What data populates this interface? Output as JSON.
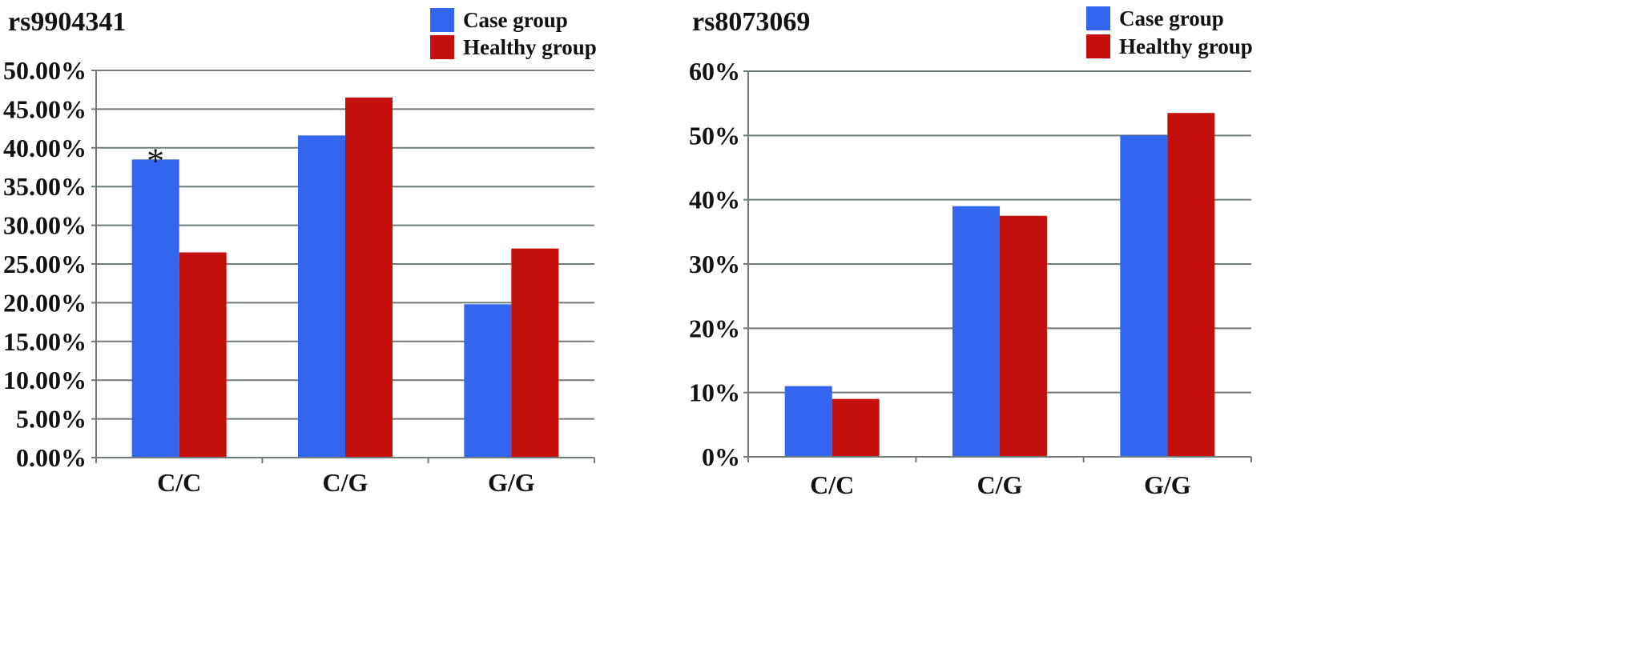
{
  "chart_data": [
    {
      "type": "bar",
      "title": "rs9904341",
      "categories": [
        "C/C",
        "C/G",
        "G/G"
      ],
      "series": [
        {
          "name": "Case group",
          "color": "#3366ee",
          "values": [
            38.5,
            41.6,
            19.8
          ]
        },
        {
          "name": "Healthy group",
          "color": "#c40f0a",
          "values": [
            26.5,
            46.5,
            27.0
          ]
        }
      ],
      "ylim": [
        0,
        50
      ],
      "yticks": [
        0,
        5,
        10,
        15,
        20,
        25,
        30,
        35,
        40,
        45,
        50
      ],
      "ytick_labels": [
        "0.00%",
        "5.00%",
        "10.00%",
        "15.00%",
        "20.00%",
        "25.00%",
        "30.00%",
        "35.00%",
        "40.00%",
        "45.00%",
        "50.00%"
      ],
      "annotations": [
        {
          "text": "*",
          "category": "C/C",
          "series": "Case group"
        }
      ],
      "legend_position": "top-right",
      "grid": true,
      "xlabel": "",
      "ylabel": ""
    },
    {
      "type": "bar",
      "title": "rs8073069",
      "categories": [
        "C/C",
        "C/G",
        "G/G"
      ],
      "series": [
        {
          "name": "Case group",
          "color": "#3366ee",
          "values": [
            11.0,
            39.0,
            50.0
          ]
        },
        {
          "name": "Healthy group",
          "color": "#c40f0a",
          "values": [
            9.0,
            37.5,
            53.5
          ]
        }
      ],
      "ylim": [
        0,
        60
      ],
      "yticks": [
        0,
        10,
        20,
        30,
        40,
        50,
        60
      ],
      "ytick_labels": [
        "0%",
        "10%",
        "20%",
        "30%",
        "40%",
        "50%",
        "60%"
      ],
      "annotations": [],
      "legend_position": "top-right",
      "grid": true,
      "xlabel": "",
      "ylabel": ""
    }
  ]
}
